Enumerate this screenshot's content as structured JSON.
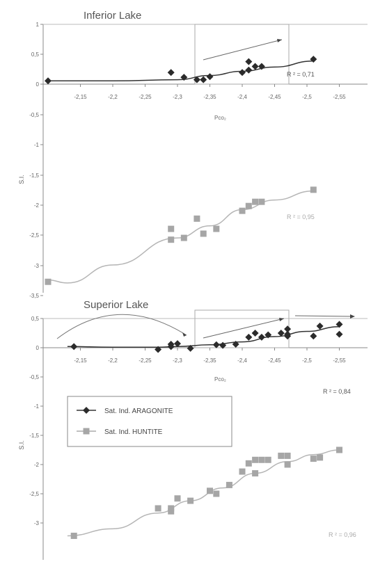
{
  "chart_data": [
    {
      "type": "scatter",
      "title": "Inferior Lake",
      "xlabel": "Pco₂",
      "ylabel": "S.I.",
      "x_tick_labels": [
        "-2,15",
        "-2,2",
        "-2,25",
        "-2,3",
        "-2,35",
        "-2,4",
        "-2,45",
        "-2,5",
        "-2,55"
      ],
      "y_tick_labels": [
        "1",
        "0,5",
        "0",
        "-0,5",
        "-1",
        "-1,5",
        "-2",
        "-2,5",
        "-3",
        "-3,5"
      ],
      "xlim": [
        -2.1,
        -2.6
      ],
      "ylim": [
        -3.5,
        1
      ],
      "series": [
        {
          "name": "Sat. Ind. ARAGONITE",
          "marker": "diamond",
          "color": "#2b2b2b",
          "x": [
            -2.1,
            -2.29,
            -2.31,
            -2.33,
            -2.34,
            -2.35,
            -2.4,
            -2.41,
            -2.41,
            -2.42,
            -2.43,
            -2.51
          ],
          "y": [
            0.06,
            0.2,
            0.12,
            0.08,
            0.08,
            0.13,
            0.2,
            0.38,
            0.24,
            0.3,
            0.3,
            0.42
          ],
          "trend_x": [
            -2.1,
            -2.2,
            -2.3,
            -2.35,
            -2.4,
            -2.45,
            -2.51
          ],
          "trend_y": [
            0.06,
            0.06,
            0.08,
            0.15,
            0.22,
            0.29,
            0.39
          ],
          "r2_label": "R ² = 0,71"
        },
        {
          "name": "Sat. Ind. HUNTITE",
          "marker": "square",
          "color": "#a6a6a6",
          "x": [
            -2.1,
            -2.29,
            -2.29,
            -2.31,
            -2.33,
            -2.34,
            -2.36,
            -2.4,
            -2.41,
            -2.42,
            -2.43,
            -2.51
          ],
          "y": [
            -3.28,
            -2.4,
            -2.58,
            -2.55,
            -2.23,
            -2.48,
            -2.4,
            -2.1,
            -2.02,
            -1.95,
            -1.95,
            -1.75
          ],
          "trend_x": [
            -2.1,
            -2.13,
            -2.2,
            -2.3,
            -2.35,
            -2.4,
            -2.45,
            -2.51
          ],
          "trend_y": [
            -3.25,
            -3.3,
            -3.0,
            -2.55,
            -2.35,
            -2.08,
            -1.92,
            -1.77
          ],
          "r2_label": "R ² = 0,95"
        }
      ]
    },
    {
      "type": "scatter",
      "title": "Superior Lake",
      "xlabel": "Pco₂",
      "ylabel": "S.I.",
      "x_tick_labels": [
        "-2,15",
        "-2,2",
        "-2,25",
        "-2,3",
        "-2,35",
        "-2,4",
        "-2,45",
        "-2,5",
        "-2,55"
      ],
      "y_tick_labels": [
        "0,5",
        "0",
        "-0,5",
        "-1",
        "-1,5",
        "-2",
        "-2,5",
        "-3"
      ],
      "xlim": [
        -2.1,
        -2.6
      ],
      "ylim": [
        -3.3,
        0.7
      ],
      "legend": "left-center",
      "series": [
        {
          "name": "Sat. Ind. ARAGONITE",
          "marker": "diamond",
          "color": "#2b2b2b",
          "x": [
            -2.14,
            -2.27,
            -2.29,
            -2.29,
            -2.3,
            -2.32,
            -2.36,
            -2.37,
            -2.39,
            -2.41,
            -2.42,
            -2.43,
            -2.44,
            -2.46,
            -2.47,
            -2.47,
            -2.47,
            -2.51,
            -2.52,
            -2.55,
            -2.55
          ],
          "y": [
            0.02,
            -0.03,
            0.02,
            0.06,
            0.07,
            -0.01,
            0.05,
            0.04,
            0.06,
            0.18,
            0.25,
            0.18,
            0.22,
            0.25,
            0.23,
            0.32,
            0.2,
            0.2,
            0.37,
            0.4,
            0.23
          ],
          "trend_x": [
            -2.13,
            -2.2,
            -2.27,
            -2.3,
            -2.35,
            -2.4,
            -2.45,
            -2.5,
            -2.55
          ],
          "trend_y": [
            0.02,
            0.01,
            0.01,
            0.02,
            0.05,
            0.1,
            0.19,
            0.28,
            0.36
          ],
          "r2_label": "R ² = 0,84"
        },
        {
          "name": "Sat. Ind. HUNTITE",
          "marker": "square",
          "color": "#a6a6a6",
          "x": [
            -2.14,
            -2.27,
            -2.29,
            -2.29,
            -2.3,
            -2.32,
            -2.35,
            -2.36,
            -2.38,
            -2.4,
            -2.41,
            -2.42,
            -2.42,
            -2.43,
            -2.44,
            -2.46,
            -2.47,
            -2.47,
            -2.51,
            -2.52,
            -2.55
          ],
          "y": [
            -3.22,
            -2.75,
            -2.75,
            -2.8,
            -2.58,
            -2.62,
            -2.45,
            -2.5,
            -2.35,
            -2.12,
            -1.98,
            -1.92,
            -2.15,
            -1.92,
            -1.92,
            -1.85,
            -2.0,
            -1.85,
            -1.9,
            -1.88,
            -1.75
          ],
          "trend_x": [
            -2.13,
            -2.2,
            -2.27,
            -2.32,
            -2.37,
            -2.42,
            -2.47,
            -2.51,
            -2.55
          ],
          "trend_y": [
            -3.22,
            -3.1,
            -2.83,
            -2.62,
            -2.4,
            -2.15,
            -1.95,
            -1.83,
            -1.75
          ],
          "r2_label": "R ² = 0,96"
        }
      ]
    }
  ]
}
